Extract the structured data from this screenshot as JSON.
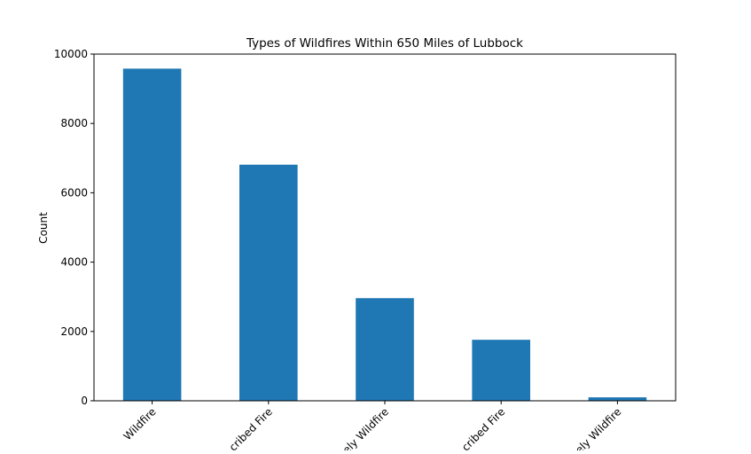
{
  "chart_data": {
    "type": "bar",
    "title": "Types of Wildfires Within 650 Miles of Lubbock",
    "xlabel": "",
    "ylabel": "Count",
    "categories": [
      "Wildfire",
      "Prescribed Fire",
      "Likely Wildfire",
      "Unknown - Likely Prescribed Fire",
      "Unknown - Likely Wildfire"
    ],
    "visible_tick_labels": [
      "Wildfire",
      "cribed Fire",
      "ely Wildfire",
      "cribed Fire",
      "ely Wildfire"
    ],
    "values": [
      9580,
      6810,
      2960,
      1760,
      100
    ],
    "ylim": [
      0,
      10000
    ],
    "yticks": [
      0,
      2000,
      4000,
      6000,
      8000,
      10000
    ],
    "ytick_labels": [
      "0",
      "2000",
      "4000",
      "6000",
      "8000",
      "10000"
    ],
    "grid": false,
    "legend": "none",
    "bar_color": "#1f77b4"
  }
}
